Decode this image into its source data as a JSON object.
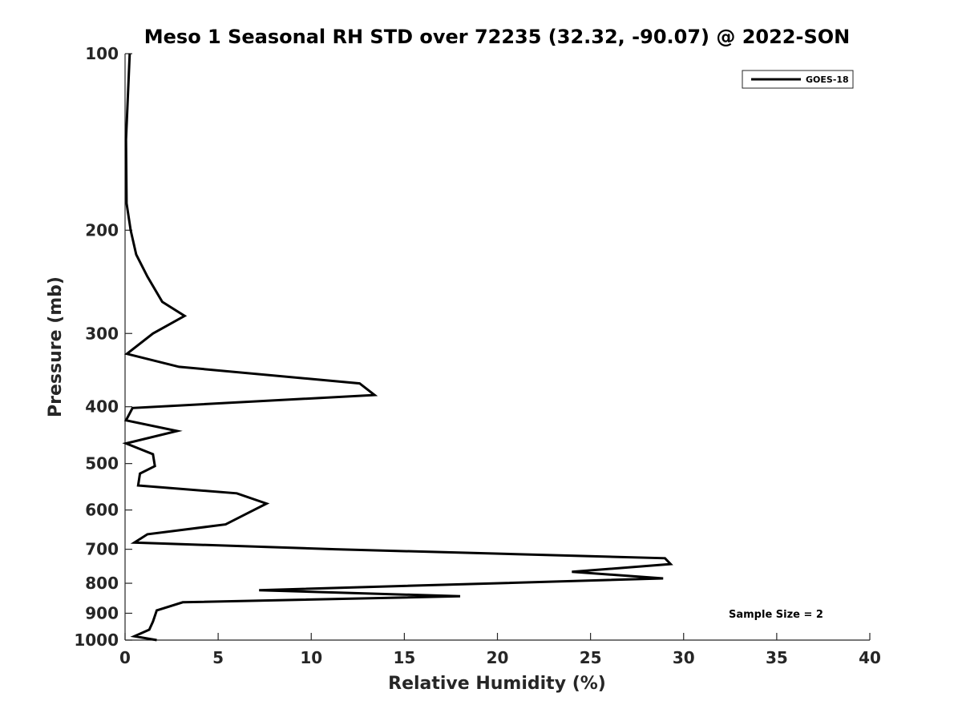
{
  "chart_data": {
    "type": "line",
    "title": "Meso 1 Seasonal RH STD over 72235 (32.32, -90.07) @ 2022-SON",
    "xlabel": "Relative Humidity (%)",
    "ylabel": "Pressure (mb)",
    "xlim": [
      0,
      40
    ],
    "ylim": [
      100,
      1000
    ],
    "yscale": "log",
    "y_reversed": true,
    "xticks": [
      0,
      5,
      10,
      15,
      20,
      25,
      30,
      35,
      40
    ],
    "yticks": [
      100,
      200,
      300,
      400,
      500,
      600,
      700,
      800,
      900,
      1000
    ],
    "grid": false,
    "legend_position": "top-right",
    "annotation": "Sample Size = 2",
    "series": [
      {
        "name": "GOES-18",
        "color": "#000000",
        "points": [
          {
            "x": 0.25,
            "y": 100
          },
          {
            "x": 0.05,
            "y": 140
          },
          {
            "x": 0.08,
            "y": 180
          },
          {
            "x": 0.3,
            "y": 200
          },
          {
            "x": 0.6,
            "y": 220
          },
          {
            "x": 1.2,
            "y": 240
          },
          {
            "x": 2.0,
            "y": 265
          },
          {
            "x": 3.2,
            "y": 280
          },
          {
            "x": 1.5,
            "y": 300
          },
          {
            "x": 0.1,
            "y": 325
          },
          {
            "x": 2.9,
            "y": 342
          },
          {
            "x": 12.6,
            "y": 365
          },
          {
            "x": 13.4,
            "y": 382
          },
          {
            "x": 0.4,
            "y": 402
          },
          {
            "x": 0.05,
            "y": 422
          },
          {
            "x": 2.8,
            "y": 440
          },
          {
            "x": 0.05,
            "y": 462
          },
          {
            "x": 1.5,
            "y": 482
          },
          {
            "x": 1.6,
            "y": 505
          },
          {
            "x": 0.8,
            "y": 520
          },
          {
            "x": 0.7,
            "y": 545
          },
          {
            "x": 6.0,
            "y": 562
          },
          {
            "x": 7.6,
            "y": 585
          },
          {
            "x": 6.7,
            "y": 605
          },
          {
            "x": 5.4,
            "y": 635
          },
          {
            "x": 1.2,
            "y": 660
          },
          {
            "x": 0.5,
            "y": 682
          },
          {
            "x": 11.3,
            "y": 700
          },
          {
            "x": 29.0,
            "y": 725
          },
          {
            "x": 29.3,
            "y": 742
          },
          {
            "x": 24.0,
            "y": 765
          },
          {
            "x": 28.9,
            "y": 785
          },
          {
            "x": 7.2,
            "y": 822
          },
          {
            "x": 18.0,
            "y": 842
          },
          {
            "x": 3.1,
            "y": 862
          },
          {
            "x": 1.7,
            "y": 890
          },
          {
            "x": 1.5,
            "y": 930
          },
          {
            "x": 1.3,
            "y": 960
          },
          {
            "x": 0.5,
            "y": 985
          },
          {
            "x": 1.7,
            "y": 1000
          }
        ]
      }
    ]
  }
}
